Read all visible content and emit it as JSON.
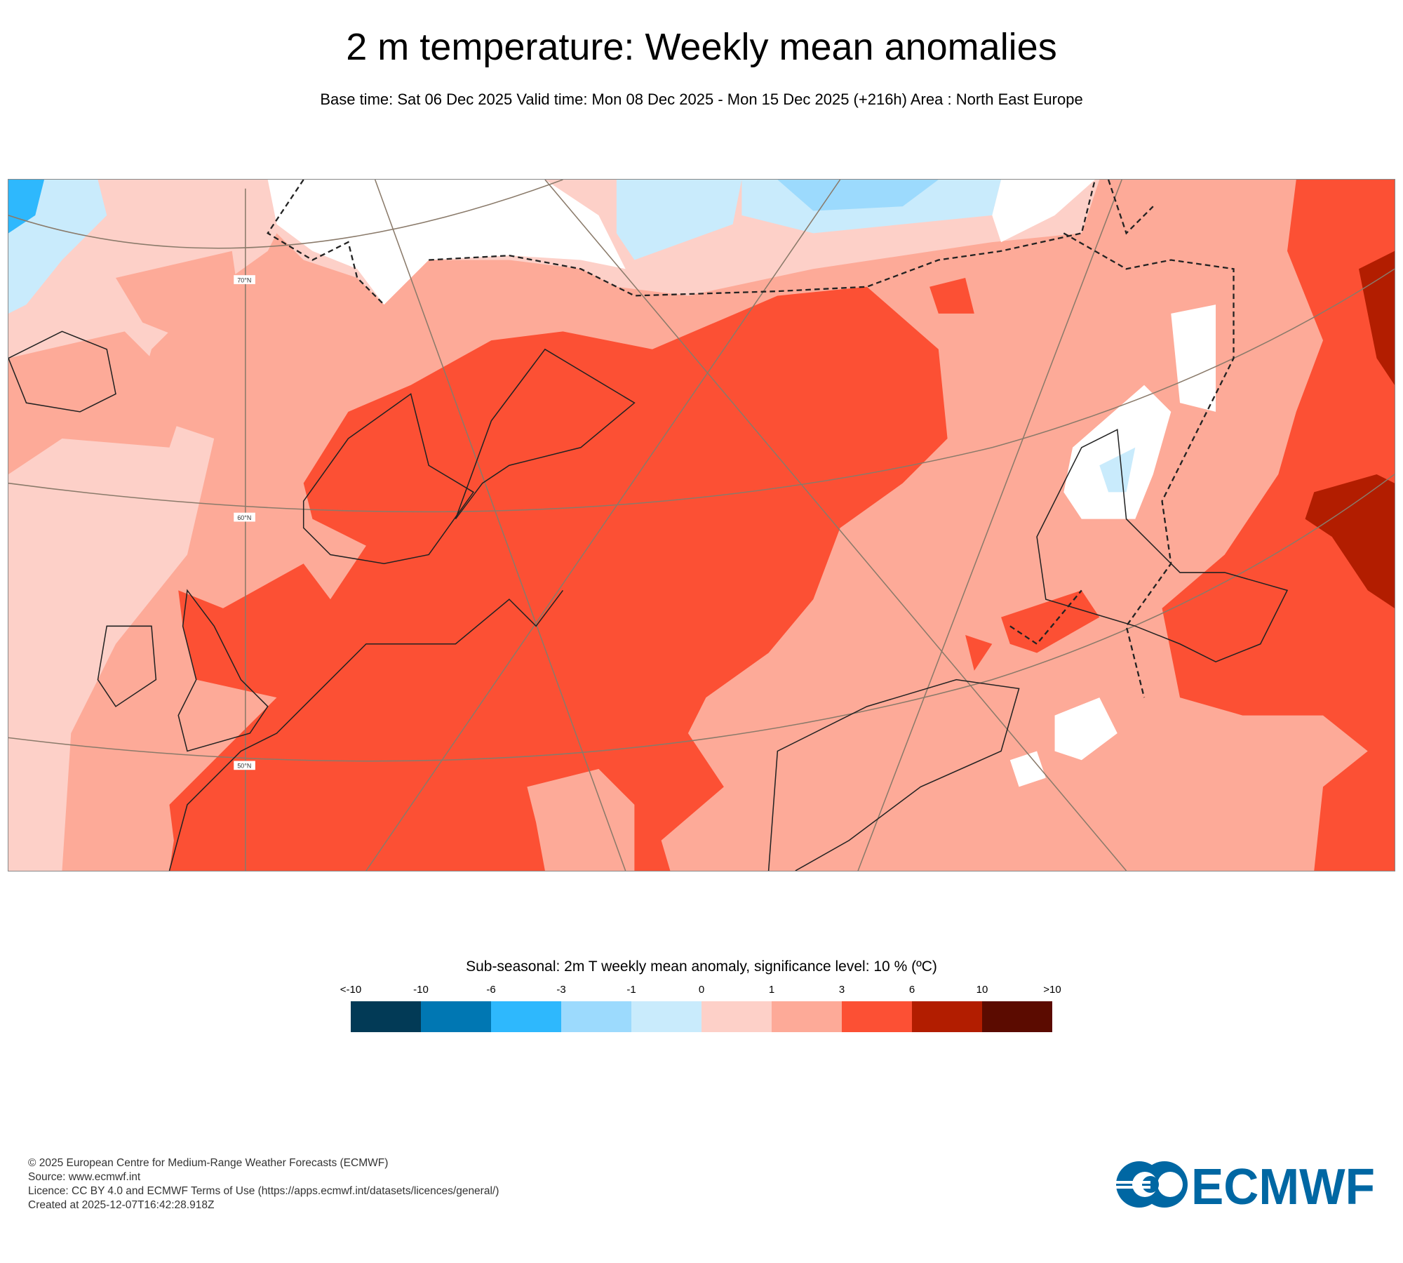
{
  "header": {
    "title": "2 m temperature: Weekly mean anomalies",
    "subtitle": "Base time: Sat 06 Dec 2025 Valid time: Mon 08 Dec 2025 - Mon 15 Dec 2025 (+216h) Area : North East Europe"
  },
  "map": {
    "gridlabels": [
      "70°N",
      "60°N",
      "50°N"
    ],
    "colors": {
      "base": "#fdaa98",
      "light_pink": "#fdd0c8",
      "red": "#fc5034",
      "dark_red": "#b21d00",
      "light_blue": "#c9ebfc",
      "blue": "#9cdafd",
      "mid_blue": "#2eb8fd"
    }
  },
  "legend": {
    "title": "Sub-seasonal: 2m T weekly mean anomaly, significance level: 10 % (ºC)",
    "labels": [
      "<-10",
      "-10",
      "-6",
      "-3",
      "-1",
      "0",
      "1",
      "3",
      "6",
      "10",
      ">10"
    ],
    "colors": [
      "#023a56",
      "#0077b3",
      "#2eb8fd",
      "#9cdafd",
      "#c9ebfc",
      "#fdd0c8",
      "#fdaa98",
      "#fc5034",
      "#b21d00",
      "#5b0b00"
    ]
  },
  "footer": {
    "lines": [
      "© 2025 European Centre for Medium-Range Weather Forecasts (ECMWF)",
      "Source: www.ecmwf.int",
      "Licence: CC BY 4.0 and ECMWF Terms of Use (https://apps.ecmwf.int/datasets/licences/general/)",
      "Created at 2025-12-07T16:42:28.918Z"
    ],
    "logo_text": "ECMWF"
  }
}
